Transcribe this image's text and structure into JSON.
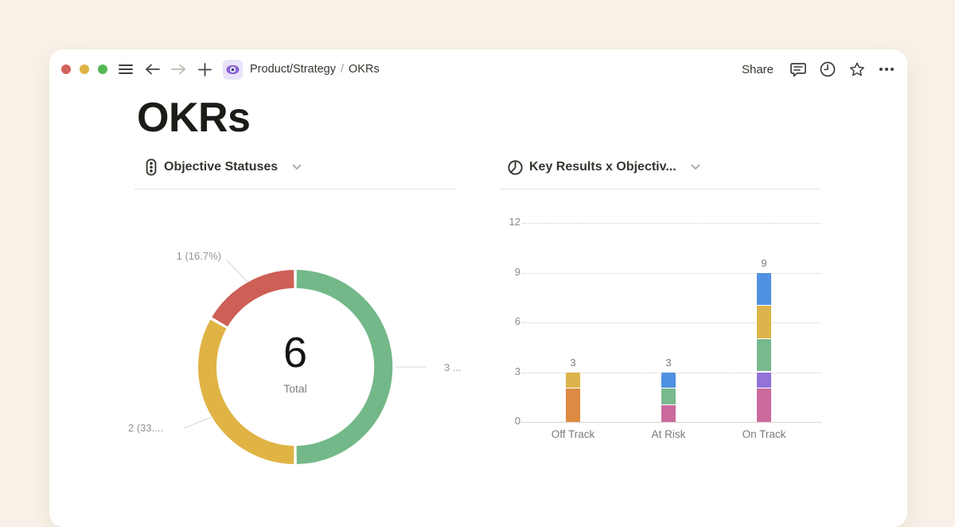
{
  "topbar": {
    "traffic_lights": {
      "red": "#d2635b",
      "yellow": "#dfb343",
      "green": "#55b755"
    },
    "breadcrumb": {
      "parent": "Product/Strategy",
      "separator": "/",
      "current": "OKRs"
    },
    "share_label": "Share"
  },
  "page": {
    "title": "OKRs"
  },
  "left_chart": {
    "title": "Objective Statuses",
    "icon": "traffic-light-icon"
  },
  "right_chart": {
    "title": "Key Results x Objectiv...",
    "icon": "pie-chart-icon"
  },
  "chart_data": [
    {
      "type": "pie",
      "style": "donut",
      "title": "Objective Statuses",
      "center_value": "6",
      "center_label": "Total",
      "total": 6,
      "legend": "none",
      "segments": [
        {
          "value": 3,
          "percent_of_total": 50.0,
          "color": "#73b888",
          "callout": "3 ..."
        },
        {
          "value": 2,
          "percent_of_total": 33.3,
          "color": "#e0b345",
          "callout": "2 (33...."
        },
        {
          "value": 1,
          "percent_of_total": 16.7,
          "color": "#cd5f56",
          "callout": "1 (16.7%)"
        }
      ]
    },
    {
      "type": "bar",
      "stacked": true,
      "title": "Key Results x Objectiv...",
      "categories": [
        "Off Track",
        "At Risk",
        "On Track"
      ],
      "totals": [
        3,
        3,
        9
      ],
      "yticks": [
        0,
        3,
        6,
        9,
        12
      ],
      "ylim": [
        0,
        12
      ],
      "grid": "dotted-horizontal",
      "stacks": [
        {
          "category": "Off Track",
          "total": 3,
          "segments": [
            {
              "value": 2,
              "color": "#dd8a42"
            },
            {
              "value": 1,
              "color": "#ddb44c"
            }
          ]
        },
        {
          "category": "At Risk",
          "total": 3,
          "segments": [
            {
              "value": 1,
              "color": "#ca6a9d"
            },
            {
              "value": 1,
              "color": "#79b98e"
            },
            {
              "value": 1,
              "color": "#4f91e1"
            }
          ]
        },
        {
          "category": "On Track",
          "total": 9,
          "segments": [
            {
              "value": 2,
              "color": "#ca6a9d"
            },
            {
              "value": 1,
              "color": "#9373d9"
            },
            {
              "value": 2,
              "color": "#79b98e"
            },
            {
              "value": 2,
              "color": "#ddb44c"
            },
            {
              "value": 2,
              "color": "#4f91e1"
            }
          ]
        }
      ]
    }
  ]
}
